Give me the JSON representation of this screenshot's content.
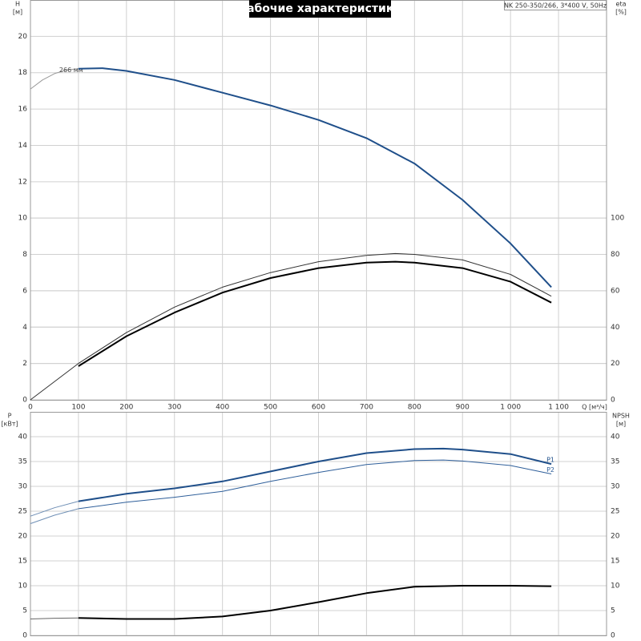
{
  "chart_data": [
    {
      "type": "line",
      "title": "Рабочие характеристики",
      "subtitle": "NK 250-350/266, 3*400 V, 50Hz",
      "ylabel": [
        "H",
        "[м]"
      ],
      "y2label": [
        "eta",
        "[%]"
      ],
      "xlabel": "Q [м³/ч]",
      "xlim": [
        0,
        1200
      ],
      "xticks": [
        0,
        100,
        200,
        300,
        400,
        500,
        600,
        700,
        800,
        900,
        {
          "value": 1000,
          "label": "1 000"
        },
        {
          "value": 1100,
          "label": "1 100"
        }
      ],
      "ylim": [
        0,
        22
      ],
      "yticks": [
        0,
        2,
        4,
        6,
        8,
        10,
        12,
        14,
        16,
        18,
        20
      ],
      "y2lim": [
        0,
        220
      ],
      "y2ticks": [
        0,
        20,
        40,
        60,
        80,
        100
      ],
      "grid": true,
      "series": [
        {
          "name": "266 мм",
          "label_at": "start",
          "color": "#999999",
          "line_width": 1,
          "x": [
            0,
            25,
            50,
            75,
            100
          ],
          "values": [
            17.1,
            17.6,
            17.95,
            18.15,
            18.22
          ]
        },
        {
          "color": "#1f4f8a",
          "line_width": 2,
          "x": [
            100,
            150,
            200,
            300,
            400,
            500,
            600,
            700,
            800,
            900,
            1000,
            1085
          ],
          "values": [
            18.22,
            18.25,
            18.1,
            17.6,
            16.9,
            16.2,
            15.4,
            14.4,
            13.0,
            11.0,
            8.6,
            6.2
          ]
        },
        {
          "color": "#333333",
          "line_width": 1,
          "axis": "y2",
          "x": [
            0,
            100,
            200,
            300,
            400,
            500,
            600,
            700,
            760,
            800,
            900,
            1000,
            1085
          ],
          "values": [
            0,
            20,
            37,
            51,
            62,
            70,
            76,
            79.5,
            80.5,
            80,
            77,
            69,
            57
          ]
        },
        {
          "color": "#000000",
          "line_width": 2,
          "axis": "y2",
          "x": [
            100,
            200,
            300,
            400,
            500,
            600,
            700,
            760,
            800,
            900,
            1000,
            1085
          ],
          "values": [
            18.5,
            35,
            48,
            59,
            67,
            72.5,
            75.5,
            76,
            75.5,
            72.5,
            65,
            53.5
          ]
        }
      ]
    },
    {
      "type": "line",
      "ylabel": [
        "P",
        "[кВт]"
      ],
      "y2label": [
        "NPSH",
        "[м]"
      ],
      "xlim": [
        0,
        1200
      ],
      "xticks": [
        0,
        100,
        200,
        300,
        400,
        500,
        600,
        700,
        800,
        900,
        1000,
        1100
      ],
      "show_xtick_labels": false,
      "ylim": [
        0,
        45
      ],
      "yticks": [
        0,
        5,
        10,
        15,
        20,
        25,
        30,
        35,
        40
      ],
      "y2lim": [
        0,
        45
      ],
      "y2ticks": [
        0,
        5,
        10,
        15,
        20,
        25,
        30,
        35,
        40
      ],
      "grid": true,
      "series": [
        {
          "color": "#6f8fb5",
          "line_width": 1,
          "x": [
            0,
            50,
            100
          ],
          "values": [
            24,
            25.7,
            27
          ]
        },
        {
          "name": "P1",
          "label_at": "end",
          "color": "#1f4f8a",
          "line_width": 2,
          "x": [
            100,
            200,
            300,
            400,
            500,
            600,
            700,
            800,
            860,
            900,
            1000,
            1085
          ],
          "values": [
            27,
            28.5,
            29.6,
            31,
            33,
            35,
            36.7,
            37.5,
            37.6,
            37.4,
            36.5,
            34.5
          ]
        },
        {
          "color": "#6f8fb5",
          "line_width": 1,
          "x": [
            0,
            50,
            100
          ],
          "values": [
            22.5,
            24.2,
            25.5
          ]
        },
        {
          "name": "P2",
          "label_at": "end",
          "color": "#2f5f9a",
          "line_width": 1,
          "x": [
            100,
            200,
            300,
            400,
            500,
            600,
            700,
            800,
            860,
            900,
            1000,
            1085
          ],
          "values": [
            25.5,
            26.8,
            27.8,
            29,
            31,
            32.8,
            34.4,
            35.2,
            35.3,
            35.1,
            34.2,
            32.5
          ]
        },
        {
          "color": "#666666",
          "line_width": 1,
          "axis": "y2",
          "x": [
            0,
            50,
            100
          ],
          "values": [
            3.3,
            3.45,
            3.5
          ]
        },
        {
          "color": "#000000",
          "line_width": 2,
          "axis": "y2",
          "x": [
            100,
            200,
            300,
            400,
            500,
            600,
            700,
            800,
            900,
            1000,
            1085
          ],
          "values": [
            3.5,
            3.3,
            3.3,
            3.8,
            5,
            6.7,
            8.5,
            9.8,
            10,
            10,
            9.9
          ]
        }
      ]
    }
  ]
}
